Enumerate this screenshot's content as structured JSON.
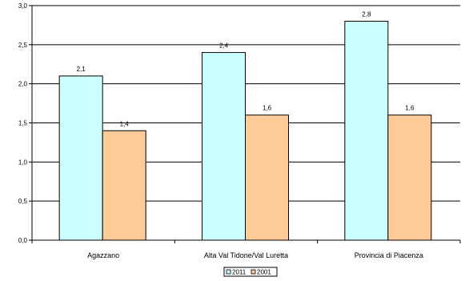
{
  "chart_data": {
    "type": "bar",
    "categories": [
      "Agazzano",
      "Alta Val Tidone/Val Luretta",
      "Provincia di Piacenza"
    ],
    "series": [
      {
        "name": "2011",
        "values": [
          2.1,
          2.4,
          2.8
        ],
        "labels": [
          "2,1",
          "2,4",
          "2,8"
        ],
        "color": "#ccffff"
      },
      {
        "name": "2001",
        "values": [
          1.4,
          1.6,
          1.6
        ],
        "labels": [
          "1,4",
          "1,6",
          "1,6"
        ],
        "color": "#ffcc99"
      }
    ],
    "ylim": [
      0,
      3.0
    ],
    "yticks": [
      0,
      0.5,
      1.0,
      1.5,
      2.0,
      2.5,
      3.0
    ],
    "ytick_labels": [
      "0,0",
      "0,5",
      "1,0",
      "1,5",
      "2,0",
      "2,5",
      "3,0"
    ],
    "grid": true,
    "legend_position": "bottom-center",
    "xlabel": "",
    "ylabel": "",
    "title": ""
  }
}
